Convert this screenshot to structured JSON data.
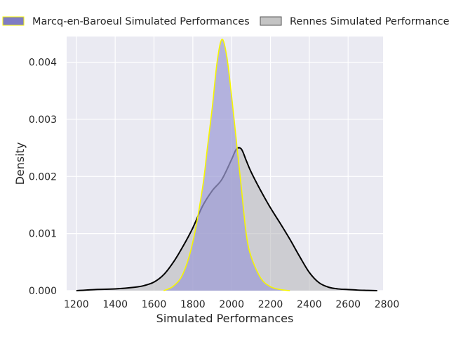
{
  "chart_data": {
    "type": "area",
    "title": "",
    "xlabel": "Simulated Performances",
    "ylabel": "Density",
    "xlim": [
      1150,
      2780
    ],
    "ylim": [
      0,
      0.00445
    ],
    "xticks": [
      1200,
      1400,
      1600,
      1800,
      2000,
      2200,
      2400,
      2600,
      2800
    ],
    "xtick_labels": [
      "1200",
      "1400",
      "1600",
      "1800",
      "2000",
      "2200",
      "2400",
      "2600",
      "2800"
    ],
    "yticks": [
      0,
      0.001,
      0.002,
      0.003,
      0.004
    ],
    "ytick_labels": [
      "0.000",
      "0.001",
      "0.002",
      "0.003",
      "0.004"
    ],
    "grid": true,
    "legend_position": "top, above plot",
    "background_color": "#eaeaf2",
    "series": [
      {
        "name": "Rennes Simulated Performances",
        "fill_color": "#b4b4b8",
        "line_color": "#000000",
        "x": [
          1200,
          1300,
          1400,
          1500,
          1550,
          1600,
          1650,
          1700,
          1750,
          1800,
          1850,
          1900,
          1950,
          2000,
          2025,
          2050,
          2075,
          2100,
          2150,
          2200,
          2250,
          2300,
          2350,
          2400,
          2450,
          2500,
          2550,
          2600,
          2650,
          2700,
          2750
        ],
        "y": [
          0.0,
          2e-05,
          3e-05,
          6e-05,
          9e-05,
          0.00015,
          0.00028,
          0.0005,
          0.00078,
          0.0011,
          0.00148,
          0.00175,
          0.00195,
          0.0023,
          0.00248,
          0.00248,
          0.00228,
          0.00208,
          0.00175,
          0.00145,
          0.00118,
          0.0009,
          0.0006,
          0.00032,
          0.00014,
          6e-05,
          3e-05,
          2e-05,
          1e-05,
          5e-06,
          0.0
        ]
      },
      {
        "name": "Marcq-en-Baroeul Simulated Performances",
        "fill_color": "#9e9cd6",
        "line_color": "#f5f500",
        "x": [
          1650,
          1700,
          1750,
          1800,
          1850,
          1875,
          1900,
          1925,
          1950,
          1975,
          2000,
          2025,
          2050,
          2075,
          2100,
          2150,
          2200,
          2250,
          2300
        ],
        "y": [
          0.0,
          8e-05,
          0.0003,
          0.00085,
          0.0018,
          0.0025,
          0.0032,
          0.004,
          0.0044,
          0.0041,
          0.0034,
          0.0026,
          0.0018,
          0.001,
          0.0006,
          0.00022,
          7e-05,
          2e-05,
          0.0
        ]
      }
    ]
  }
}
